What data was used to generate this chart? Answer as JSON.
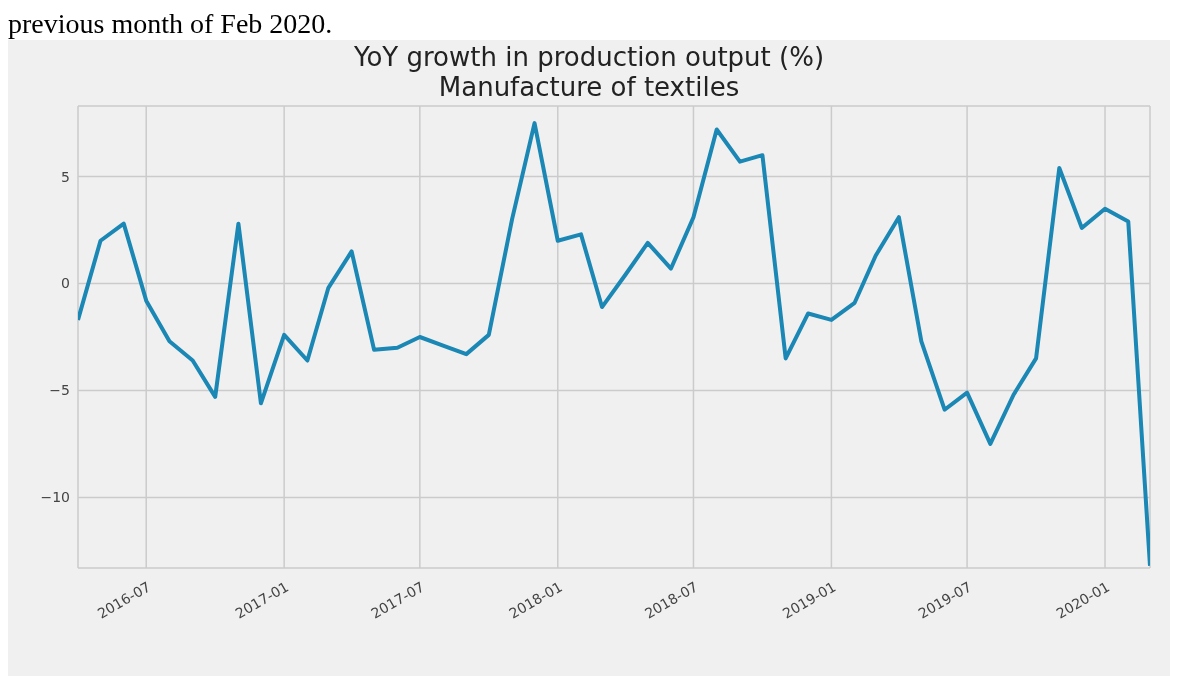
{
  "chart_data": {
    "type": "line",
    "title": "YoY growth in production output (%)",
    "subtitle": "Manufacture of textiles",
    "annotations": [
      "previous month of Feb 2020."
    ],
    "x": [
      "2016-04",
      "2016-05",
      "2016-06",
      "2016-07",
      "2016-08",
      "2016-09",
      "2016-10",
      "2016-11",
      "2016-12",
      "2017-01",
      "2017-02",
      "2017-03",
      "2017-04",
      "2017-05",
      "2017-06",
      "2017-07",
      "2017-08",
      "2017-09",
      "2017-10",
      "2017-11",
      "2017-12",
      "2018-01",
      "2018-02",
      "2018-03",
      "2018-04",
      "2018-05",
      "2018-06",
      "2018-07",
      "2018-08",
      "2018-09",
      "2018-10",
      "2018-11",
      "2018-12",
      "2019-01",
      "2019-02",
      "2019-03",
      "2019-04",
      "2019-05",
      "2019-06",
      "2019-07",
      "2019-08",
      "2019-09",
      "2019-10",
      "2019-11",
      "2019-12",
      "2020-01",
      "2020-02",
      "2020-03"
    ],
    "series": [
      {
        "color": "#1a87b5",
        "values": [
          -1.7,
          2.0,
          2.8,
          -0.8,
          -2.7,
          -3.6,
          -5.3,
          2.8,
          -5.6,
          -2.4,
          -3.6,
          -0.2,
          1.5,
          -3.1,
          -3.0,
          -2.5,
          -2.9,
          -3.3,
          -2.4,
          3.0,
          7.5,
          2.0,
          2.3,
          -1.1,
          0.4,
          1.9,
          0.7,
          3.1,
          7.2,
          5.7,
          6.0,
          -3.5,
          -1.4,
          -1.7,
          -0.9,
          1.3,
          3.1,
          -2.7,
          -5.9,
          -5.1,
          -7.5,
          -5.2,
          -3.5,
          5.4,
          2.6,
          3.5,
          2.9,
          -13.2
        ]
      }
    ],
    "xlim": [
      "2016-04",
      "2020-03"
    ],
    "xticks": [
      "2016-07",
      "2017-01",
      "2017-07",
      "2018-01",
      "2018-07",
      "2019-01",
      "2019-07",
      "2020-01"
    ],
    "ylim": [
      -13.3,
      8.3
    ],
    "yticks": [
      -10,
      -5,
      0,
      5
    ],
    "grid": true,
    "legend": false,
    "marker": "none",
    "line_style": "solid"
  }
}
